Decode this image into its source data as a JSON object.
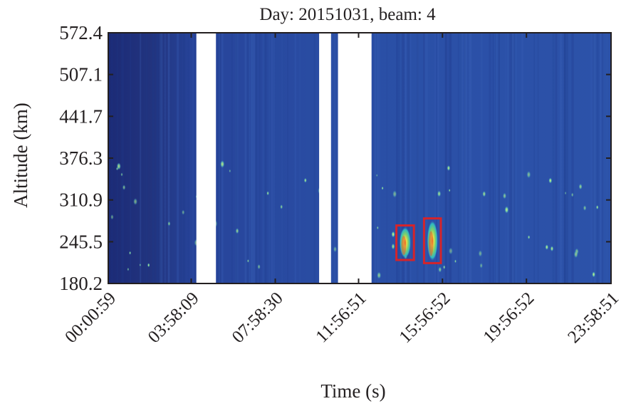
{
  "chart_data": {
    "type": "heatmap",
    "title": "Day: 20151031, beam: 4",
    "xlabel": "Time (s)",
    "ylabel": "Altitude (km)",
    "x_tick_labels": [
      "00:00:59",
      "03:58:09",
      "07:58:30",
      "11:56:51",
      "15:56:52",
      "19:56:52",
      "23:58:51"
    ],
    "x_tick_seconds": [
      59,
      14289,
      28710,
      43011,
      57412,
      71812,
      86331
    ],
    "y_tick_labels": [
      "572.4",
      "507.1",
      "441.7",
      "376.3",
      "310.9",
      "245.5",
      "180.2"
    ],
    "y_tick_values": [
      572.4,
      507.1,
      441.7,
      376.3,
      310.9,
      245.5,
      180.2
    ],
    "xlim": [
      59,
      86331
    ],
    "ylim": [
      180.2,
      572.4
    ],
    "grid": false,
    "colormap": "jet",
    "background_colors": {
      "early_hours": "#20317e",
      "daytime": "#2a4fa6"
    },
    "data_gaps": [
      {
        "start": "04:13:00",
        "end": "05:09:00"
      },
      {
        "start": "10:04:00",
        "end": "10:38:00"
      },
      {
        "start": "10:58:00",
        "end": "12:34:00"
      }
    ],
    "detections": [
      {
        "time_start": "13:45:00",
        "time_end": "14:35:00",
        "alt_min": 217,
        "alt_max": 271,
        "boxed": true,
        "box_color": "#d4242b"
      },
      {
        "time_start": "15:04:00",
        "time_end": "15:52:00",
        "alt_min": 212,
        "alt_max": 282,
        "boxed": true,
        "box_color": "#d4242b"
      }
    ]
  }
}
